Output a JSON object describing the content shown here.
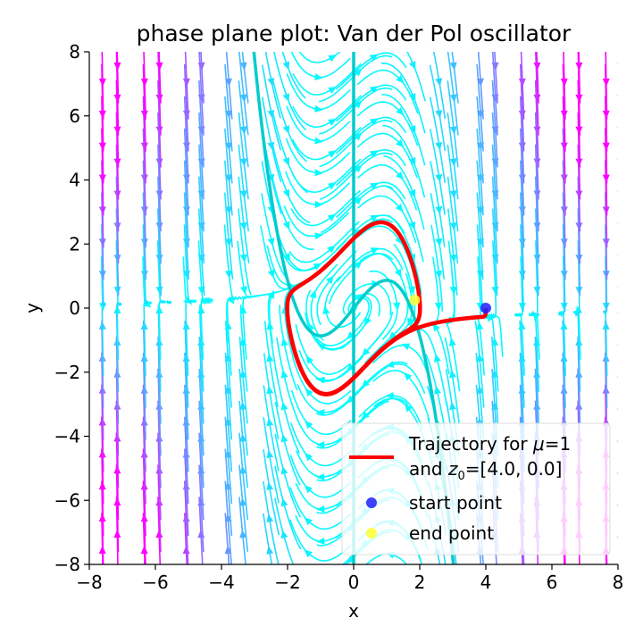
{
  "chart_data": {
    "type": "streamplot",
    "title": "phase plane plot: Van der Pol oscillator",
    "xlabel": "x",
    "ylabel": "y",
    "xlim": [
      -8,
      8
    ],
    "ylim": [
      -8,
      8
    ],
    "xticks": [
      -8,
      -6,
      -4,
      -2,
      0,
      2,
      4,
      6,
      8
    ],
    "yticks": [
      -8,
      -6,
      -4,
      -2,
      0,
      2,
      4,
      6,
      8
    ],
    "xtick_labels": [
      "−8",
      "−6",
      "−4",
      "−2",
      "0",
      "2",
      "4",
      "6",
      "8"
    ],
    "ytick_labels": [
      "−8",
      "−6",
      "−4",
      "−2",
      "0",
      "2",
      "4",
      "6",
      "8"
    ],
    "grid": false,
    "mu": 1,
    "z0": [
      4.0,
      0.0
    ],
    "stream_colormap": [
      "#00ffff",
      "#ff00ff"
    ],
    "nullclines": {
      "color": "#00cccc",
      "x_nullcline": "x = 0",
      "y_nullcline": "y = mu*(1 - x^2)*x ... cubic curve"
    },
    "trajectory": {
      "color": "#ff0000",
      "start": [
        4.0,
        0.0
      ],
      "end": [
        1.85,
        0.25
      ]
    },
    "start_point": {
      "x": 4.0,
      "y": 0.0,
      "color": "#1f1fff"
    },
    "end_point": {
      "x": 1.85,
      "y": 0.25,
      "color": "#ffff33"
    },
    "legend": {
      "placement": "lower-right",
      "entries": [
        {
          "kind": "line",
          "color": "#ff0000",
          "line1_a": "Trajectory for ",
          "line1_mu": "μ",
          "line1_b": "=1",
          "line2_a": "and ",
          "line2_z": "z",
          "line2_sub": "0",
          "line2_b": "=[4.0, 0.0]"
        },
        {
          "kind": "marker",
          "color": "#1f1fff",
          "label": "start point"
        },
        {
          "kind": "marker",
          "color": "#ffff33",
          "label": "end point"
        }
      ]
    }
  }
}
